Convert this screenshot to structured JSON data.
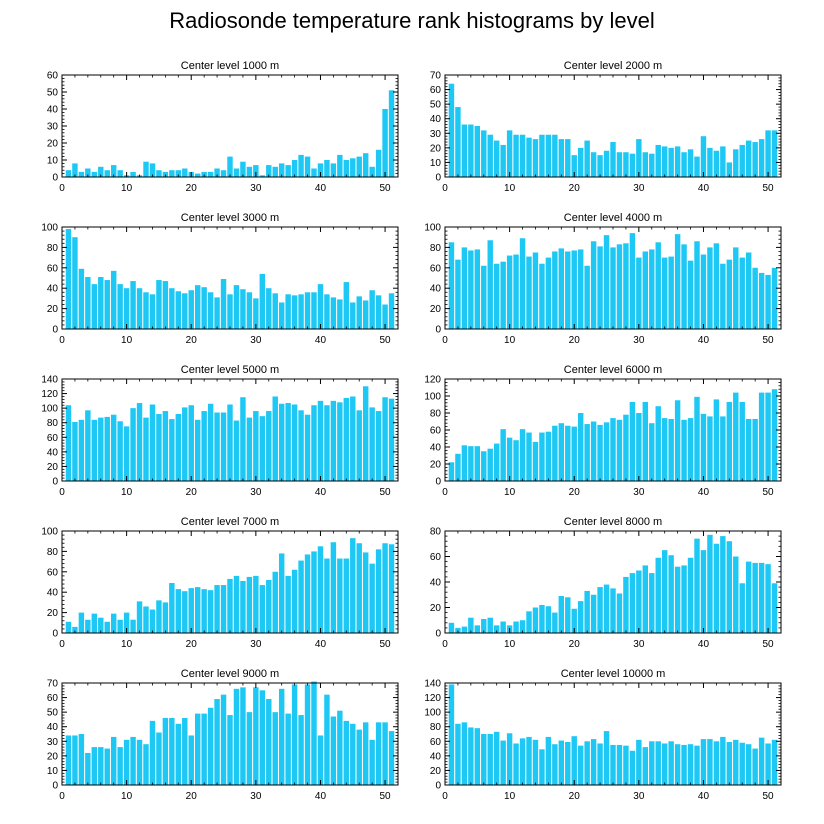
{
  "title": "Radiosonde temperature rank histograms by level",
  "colors": {
    "bar": "#1ec8f5",
    "axis": "#000000"
  },
  "chart_data": [
    {
      "type": "bar",
      "title": "Center level 1000 m",
      "xlabel": "",
      "ylabel": "",
      "xlim": [
        0,
        52
      ],
      "ylim": [
        0,
        60
      ],
      "xticks": [
        0,
        10,
        20,
        30,
        40,
        50
      ],
      "yticks": [
        0,
        10,
        20,
        30,
        40,
        50,
        60
      ],
      "categories": [
        1,
        2,
        3,
        4,
        5,
        6,
        7,
        8,
        9,
        10,
        11,
        12,
        13,
        14,
        15,
        16,
        17,
        18,
        19,
        20,
        21,
        22,
        23,
        24,
        25,
        26,
        27,
        28,
        29,
        30,
        31,
        32,
        33,
        34,
        35,
        36,
        37,
        38,
        39,
        40,
        41,
        42,
        43,
        44,
        45,
        46,
        47,
        48,
        49,
        50,
        51
      ],
      "values": [
        4,
        8,
        3,
        5,
        3,
        6,
        4,
        7,
        4,
        1,
        3,
        1,
        9,
        8,
        4,
        3,
        4,
        4,
        5,
        3,
        2,
        3,
        3,
        5,
        4,
        12,
        5,
        9,
        6,
        7,
        1,
        7,
        6,
        8,
        7,
        10,
        13,
        12,
        5,
        8,
        10,
        8,
        13,
        10,
        11,
        12,
        14,
        6,
        16,
        40,
        51
      ]
    },
    {
      "type": "bar",
      "title": "Center level 2000 m",
      "xlabel": "",
      "ylabel": "",
      "xlim": [
        0,
        52
      ],
      "ylim": [
        0,
        70
      ],
      "xticks": [
        0,
        10,
        20,
        30,
        40,
        50
      ],
      "yticks": [
        0,
        10,
        20,
        30,
        40,
        50,
        60,
        70
      ],
      "categories": [
        1,
        2,
        3,
        4,
        5,
        6,
        7,
        8,
        9,
        10,
        11,
        12,
        13,
        14,
        15,
        16,
        17,
        18,
        19,
        20,
        21,
        22,
        23,
        24,
        25,
        26,
        27,
        28,
        29,
        30,
        31,
        32,
        33,
        34,
        35,
        36,
        37,
        38,
        39,
        40,
        41,
        42,
        43,
        44,
        45,
        46,
        47,
        48,
        49,
        50,
        51
      ],
      "values": [
        64,
        48,
        36,
        36,
        35,
        32,
        29,
        25,
        22,
        32,
        29,
        29,
        27,
        26,
        29,
        29,
        29,
        26,
        26,
        15,
        20,
        25,
        17,
        15,
        18,
        24,
        17,
        17,
        16,
        26,
        17,
        16,
        22,
        21,
        20,
        21,
        17,
        19,
        14,
        28,
        20,
        18,
        21,
        10,
        19,
        22,
        25,
        24,
        26,
        32,
        32
      ]
    },
    {
      "type": "bar",
      "title": "Center level 3000 m",
      "xlabel": "",
      "ylabel": "",
      "xlim": [
        0,
        52
      ],
      "ylim": [
        0,
        100
      ],
      "xticks": [
        0,
        10,
        20,
        30,
        40,
        50
      ],
      "yticks": [
        0,
        20,
        40,
        60,
        80,
        100
      ],
      "categories": [
        1,
        2,
        3,
        4,
        5,
        6,
        7,
        8,
        9,
        10,
        11,
        12,
        13,
        14,
        15,
        16,
        17,
        18,
        19,
        20,
        21,
        22,
        23,
        24,
        25,
        26,
        27,
        28,
        29,
        30,
        31,
        32,
        33,
        34,
        35,
        36,
        37,
        38,
        39,
        40,
        41,
        42,
        43,
        44,
        45,
        46,
        47,
        48,
        49,
        50,
        51
      ],
      "values": [
        98,
        90,
        59,
        51,
        44,
        51,
        48,
        57,
        44,
        40,
        47,
        40,
        36,
        34,
        48,
        47,
        40,
        37,
        35,
        38,
        43,
        41,
        36,
        31,
        49,
        34,
        43,
        39,
        36,
        30,
        54,
        40,
        35,
        26,
        34,
        33,
        34,
        36,
        36,
        44,
        34,
        31,
        29,
        46,
        26,
        32,
        28,
        38,
        33,
        24,
        35
      ]
    },
    {
      "type": "bar",
      "title": "Center level 4000 m",
      "xlabel": "",
      "ylabel": "",
      "xlim": [
        0,
        52
      ],
      "ylim": [
        0,
        100
      ],
      "xticks": [
        0,
        10,
        20,
        30,
        40,
        50
      ],
      "yticks": [
        0,
        20,
        40,
        60,
        80,
        100
      ],
      "categories": [
        1,
        2,
        3,
        4,
        5,
        6,
        7,
        8,
        9,
        10,
        11,
        12,
        13,
        14,
        15,
        16,
        17,
        18,
        19,
        20,
        21,
        22,
        23,
        24,
        25,
        26,
        27,
        28,
        29,
        30,
        31,
        32,
        33,
        34,
        35,
        36,
        37,
        38,
        39,
        40,
        41,
        42,
        43,
        44,
        45,
        46,
        47,
        48,
        49,
        50,
        51
      ],
      "values": [
        85,
        68,
        80,
        77,
        78,
        62,
        87,
        64,
        66,
        72,
        73,
        89,
        71,
        75,
        64,
        70,
        76,
        79,
        76,
        77,
        78,
        62,
        86,
        81,
        92,
        80,
        83,
        84,
        94,
        70,
        76,
        78,
        85,
        70,
        71,
        93,
        83,
        67,
        86,
        73,
        80,
        84,
        64,
        68,
        80,
        70,
        75,
        60,
        55,
        53,
        60
      ]
    },
    {
      "type": "bar",
      "title": "Center level 5000 m",
      "xlabel": "",
      "ylabel": "",
      "xlim": [
        0,
        52
      ],
      "ylim": [
        0,
        140
      ],
      "xticks": [
        0,
        10,
        20,
        30,
        40,
        50
      ],
      "yticks": [
        0,
        20,
        40,
        60,
        80,
        100,
        120,
        140
      ],
      "categories": [
        1,
        2,
        3,
        4,
        5,
        6,
        7,
        8,
        9,
        10,
        11,
        12,
        13,
        14,
        15,
        16,
        17,
        18,
        19,
        20,
        21,
        22,
        23,
        24,
        25,
        26,
        27,
        28,
        29,
        30,
        31,
        32,
        33,
        34,
        35,
        36,
        37,
        38,
        39,
        40,
        41,
        42,
        43,
        44,
        45,
        46,
        47,
        48,
        49,
        50,
        51
      ],
      "values": [
        104,
        81,
        84,
        97,
        84,
        87,
        88,
        91,
        82,
        75,
        100,
        107,
        87,
        105,
        92,
        96,
        85,
        92,
        101,
        104,
        84,
        96,
        106,
        94,
        94,
        105,
        83,
        115,
        87,
        96,
        89,
        96,
        116,
        106,
        107,
        105,
        97,
        91,
        104,
        110,
        104,
        110,
        108,
        114,
        116,
        97,
        130,
        101,
        96,
        115,
        113
      ]
    },
    {
      "type": "bar",
      "title": "Center level 6000 m",
      "xlabel": "",
      "ylabel": "",
      "xlim": [
        0,
        52
      ],
      "ylim": [
        0,
        120
      ],
      "xticks": [
        0,
        10,
        20,
        30,
        40,
        50
      ],
      "yticks": [
        0,
        20,
        40,
        60,
        80,
        100,
        120
      ],
      "categories": [
        1,
        2,
        3,
        4,
        5,
        6,
        7,
        8,
        9,
        10,
        11,
        12,
        13,
        14,
        15,
        16,
        17,
        18,
        19,
        20,
        21,
        22,
        23,
        24,
        25,
        26,
        27,
        28,
        29,
        30,
        31,
        32,
        33,
        34,
        35,
        36,
        37,
        38,
        39,
        40,
        41,
        42,
        43,
        44,
        45,
        46,
        47,
        48,
        49,
        50,
        51
      ],
      "values": [
        22,
        32,
        42,
        41,
        41,
        35,
        38,
        44,
        61,
        51,
        48,
        61,
        57,
        46,
        57,
        58,
        65,
        68,
        65,
        64,
        80,
        67,
        70,
        66,
        69,
        74,
        72,
        78,
        93,
        80,
        93,
        68,
        88,
        74,
        73,
        95,
        72,
        74,
        99,
        79,
        76,
        96,
        76,
        93,
        104,
        93,
        73,
        73,
        104,
        104,
        108
      ]
    },
    {
      "type": "bar",
      "title": "Center level 7000 m",
      "xlabel": "",
      "ylabel": "",
      "xlim": [
        0,
        52
      ],
      "ylim": [
        0,
        100
      ],
      "xticks": [
        0,
        10,
        20,
        30,
        40,
        50
      ],
      "yticks": [
        0,
        20,
        40,
        60,
        80,
        100
      ],
      "categories": [
        1,
        2,
        3,
        4,
        5,
        6,
        7,
        8,
        9,
        10,
        11,
        12,
        13,
        14,
        15,
        16,
        17,
        18,
        19,
        20,
        21,
        22,
        23,
        24,
        25,
        26,
        27,
        28,
        29,
        30,
        31,
        32,
        33,
        34,
        35,
        36,
        37,
        38,
        39,
        40,
        41,
        42,
        43,
        44,
        45,
        46,
        47,
        48,
        49,
        50,
        51
      ],
      "values": [
        11,
        6,
        20,
        13,
        19,
        15,
        11,
        19,
        13,
        20,
        13,
        31,
        26,
        23,
        32,
        30,
        49,
        43,
        41,
        44,
        45,
        43,
        42,
        47,
        47,
        53,
        56,
        51,
        55,
        56,
        47,
        52,
        60,
        78,
        56,
        62,
        71,
        77,
        80,
        85,
        73,
        89,
        73,
        73,
        93,
        88,
        79,
        68,
        82,
        88,
        87
      ]
    },
    {
      "type": "bar",
      "title": "Center level 8000 m",
      "xlabel": "",
      "ylabel": "",
      "xlim": [
        0,
        52
      ],
      "ylim": [
        0,
        80
      ],
      "xticks": [
        0,
        10,
        20,
        30,
        40,
        50
      ],
      "yticks": [
        0,
        20,
        40,
        60,
        80
      ],
      "categories": [
        1,
        2,
        3,
        4,
        5,
        6,
        7,
        8,
        9,
        10,
        11,
        12,
        13,
        14,
        15,
        16,
        17,
        18,
        19,
        20,
        21,
        22,
        23,
        24,
        25,
        26,
        27,
        28,
        29,
        30,
        31,
        32,
        33,
        34,
        35,
        36,
        37,
        38,
        39,
        40,
        41,
        42,
        43,
        44,
        45,
        46,
        47,
        48,
        49,
        50,
        51
      ],
      "values": [
        8,
        4,
        5,
        12,
        6,
        11,
        12,
        6,
        9,
        6,
        9,
        10,
        17,
        20,
        22,
        21,
        16,
        29,
        28,
        19,
        25,
        33,
        30,
        36,
        38,
        35,
        31,
        44,
        47,
        49,
        53,
        47,
        59,
        65,
        61,
        52,
        53,
        59,
        74,
        65,
        77,
        70,
        76,
        72,
        60,
        39,
        56,
        55,
        55,
        54,
        39
      ]
    },
    {
      "type": "bar",
      "title": "Center level 9000 m",
      "xlabel": "",
      "ylabel": "",
      "xlim": [
        0,
        52
      ],
      "ylim": [
        0,
        70
      ],
      "xticks": [
        0,
        10,
        20,
        30,
        40,
        50
      ],
      "yticks": [
        0,
        10,
        20,
        30,
        40,
        50,
        60,
        70
      ],
      "categories": [
        1,
        2,
        3,
        4,
        5,
        6,
        7,
        8,
        9,
        10,
        11,
        12,
        13,
        14,
        15,
        16,
        17,
        18,
        19,
        20,
        21,
        22,
        23,
        24,
        25,
        26,
        27,
        28,
        29,
        30,
        31,
        32,
        33,
        34,
        35,
        36,
        37,
        38,
        39,
        40,
        41,
        42,
        43,
        44,
        45,
        46,
        47,
        48,
        49,
        50,
        51
      ],
      "values": [
        34,
        34,
        35,
        22,
        26,
        26,
        25,
        33,
        26,
        31,
        33,
        31,
        28,
        44,
        36,
        46,
        46,
        42,
        46,
        34,
        49,
        49,
        53,
        59,
        62,
        48,
        66,
        67,
        50,
        67,
        65,
        59,
        50,
        66,
        49,
        69,
        48,
        69,
        71,
        34,
        62,
        47,
        51,
        44,
        42,
        38,
        43,
        31,
        43,
        43,
        37
      ]
    },
    {
      "type": "bar",
      "title": "Center level 10000 m",
      "xlabel": "",
      "ylabel": "",
      "xlim": [
        0,
        52
      ],
      "ylim": [
        0,
        140
      ],
      "xticks": [
        0,
        10,
        20,
        30,
        40,
        50
      ],
      "yticks": [
        0,
        20,
        40,
        60,
        80,
        100,
        120,
        140
      ],
      "categories": [
        1,
        2,
        3,
        4,
        5,
        6,
        7,
        8,
        9,
        10,
        11,
        12,
        13,
        14,
        15,
        16,
        17,
        18,
        19,
        20,
        21,
        22,
        23,
        24,
        25,
        26,
        27,
        28,
        29,
        30,
        31,
        32,
        33,
        34,
        35,
        36,
        37,
        38,
        39,
        40,
        41,
        42,
        43,
        44,
        45,
        46,
        47,
        48,
        49,
        50,
        51
      ],
      "values": [
        138,
        84,
        86,
        79,
        78,
        70,
        70,
        73,
        61,
        71,
        57,
        64,
        66,
        62,
        49,
        66,
        56,
        61,
        59,
        67,
        54,
        60,
        63,
        57,
        74,
        55,
        55,
        54,
        47,
        62,
        52,
        60,
        60,
        57,
        60,
        56,
        55,
        56,
        54,
        63,
        63,
        60,
        66,
        59,
        62,
        58,
        56,
        50,
        65,
        57,
        62
      ]
    }
  ]
}
